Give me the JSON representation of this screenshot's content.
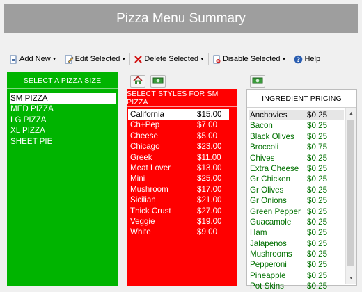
{
  "header": {
    "title": "Pizza Menu Summary"
  },
  "toolbar": {
    "add_label": "Add New",
    "edit_label": "Edit Selected",
    "delete_label": "Delete Selected",
    "disable_label": "Disable Selected",
    "help_label": "Help"
  },
  "size_panel": {
    "header": "SELECT A PIZZA SIZE",
    "items": [
      "SM PIZZA",
      "MED PIZZA",
      "LG PIZZA",
      "XL PIZZA",
      "SHEET PIE"
    ],
    "selected_index": 0
  },
  "style_panel": {
    "header": "SELECT STYLES FOR SM PIZZA",
    "items": [
      {
        "name": "California",
        "price": "$15.00"
      },
      {
        "name": "Ch+Pep",
        "price": "$7.00"
      },
      {
        "name": "Cheese",
        "price": "$5.00"
      },
      {
        "name": "Chicago",
        "price": "$23.00"
      },
      {
        "name": "Greek",
        "price": "$11.00"
      },
      {
        "name": "Meat Lover",
        "price": "$13.00"
      },
      {
        "name": "Mini",
        "price": "$25.00"
      },
      {
        "name": "Mushroom",
        "price": "$17.00"
      },
      {
        "name": "Sicilian",
        "price": "$21.00"
      },
      {
        "name": "Thick Crust",
        "price": "$27.00"
      },
      {
        "name": "Veggie",
        "price": "$19.00"
      },
      {
        "name": "White",
        "price": "$9.00"
      }
    ],
    "selected_index": 0
  },
  "ingredient_panel": {
    "header": "INGREDIENT PRICING",
    "items": [
      {
        "name": "Anchovies",
        "price": "$0.25"
      },
      {
        "name": "Bacon",
        "price": "$0.25"
      },
      {
        "name": "Black Olives",
        "price": "$0.25"
      },
      {
        "name": "Broccoli",
        "price": "$0.75"
      },
      {
        "name": "Chives",
        "price": "$0.25"
      },
      {
        "name": "Extra Cheese",
        "price": "$0.25"
      },
      {
        "name": "Gr Chicken",
        "price": "$0.25"
      },
      {
        "name": "Gr Olives",
        "price": "$0.25"
      },
      {
        "name": "Gr Onions",
        "price": "$0.25"
      },
      {
        "name": "Green Pepper",
        "price": "$0.25"
      },
      {
        "name": "Guacamole",
        "price": "$0.25"
      },
      {
        "name": "Ham",
        "price": "$0.25"
      },
      {
        "name": "Jalapenos",
        "price": "$0.25"
      },
      {
        "name": "Mushrooms",
        "price": "$0.25"
      },
      {
        "name": "Pepperoni",
        "price": "$0.25"
      },
      {
        "name": "Pineapple",
        "price": "$0.25"
      },
      {
        "name": "Pot Skins",
        "price": "$0.25"
      }
    ],
    "selected_index": 0
  },
  "icons": {
    "add": "add-document-icon",
    "edit": "edit-icon",
    "delete": "red-x-icon",
    "disable": "disable-document-icon",
    "help": "help-icon",
    "home": "home-icon",
    "money": "money-icon"
  },
  "colors": {
    "size_panel": "#00b400",
    "style_panel": "#ff0000",
    "ingredient_text": "#007000",
    "title_bar": "#9e9e9e"
  }
}
